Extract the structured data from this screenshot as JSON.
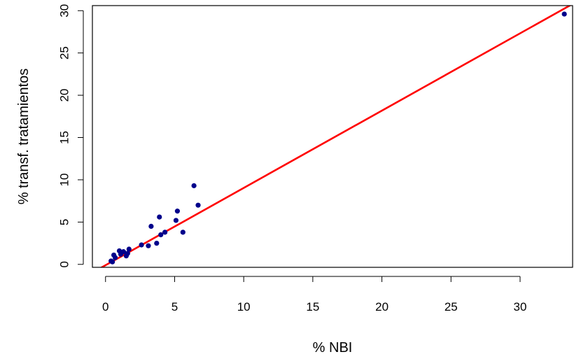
{
  "chart_data": {
    "type": "scatter",
    "xlabel": "% NBI",
    "ylabel": "% transf. tratamientos",
    "xlim": [
      -0.95,
      33.8
    ],
    "ylim": [
      -0.35,
      30.6
    ],
    "xticks": [
      0,
      5,
      10,
      15,
      20,
      25,
      30
    ],
    "yticks": [
      0,
      5,
      10,
      15,
      20,
      25,
      30
    ],
    "point_color": "#00008b",
    "line_color": "#ff0000",
    "grid": false,
    "points": [
      {
        "x": 0.4,
        "y": 0.4
      },
      {
        "x": 0.5,
        "y": 0.3
      },
      {
        "x": 0.6,
        "y": 1.1
      },
      {
        "x": 0.7,
        "y": 0.8
      },
      {
        "x": 1.0,
        "y": 1.6
      },
      {
        "x": 1.1,
        "y": 1.2
      },
      {
        "x": 1.3,
        "y": 1.5
      },
      {
        "x": 1.5,
        "y": 1.0
      },
      {
        "x": 1.6,
        "y": 1.3
      },
      {
        "x": 1.7,
        "y": 1.8
      },
      {
        "x": 2.6,
        "y": 2.3
      },
      {
        "x": 3.1,
        "y": 2.2
      },
      {
        "x": 3.3,
        "y": 4.5
      },
      {
        "x": 3.7,
        "y": 2.5
      },
      {
        "x": 3.9,
        "y": 5.6
      },
      {
        "x": 4.0,
        "y": 3.5
      },
      {
        "x": 4.3,
        "y": 3.8
      },
      {
        "x": 5.1,
        "y": 5.2
      },
      {
        "x": 5.2,
        "y": 6.3
      },
      {
        "x": 5.6,
        "y": 3.8
      },
      {
        "x": 6.4,
        "y": 9.3
      },
      {
        "x": 6.7,
        "y": 7.0
      },
      {
        "x": 33.2,
        "y": 29.6
      }
    ],
    "fit_line": {
      "intercept": -0.1,
      "slope": 0.914
    }
  }
}
